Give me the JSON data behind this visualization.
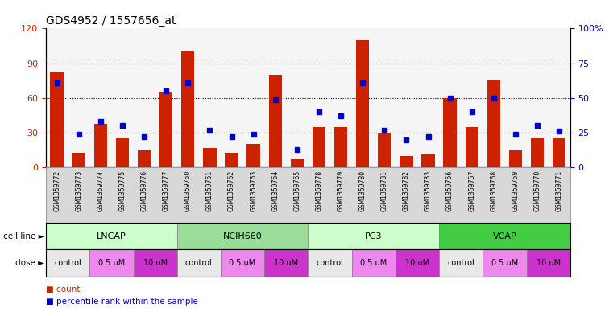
{
  "title": "GDS4952 / 1557656_at",
  "samples": [
    "GSM1359772",
    "GSM1359773",
    "GSM1359774",
    "GSM1359775",
    "GSM1359776",
    "GSM1359777",
    "GSM1359760",
    "GSM1359761",
    "GSM1359762",
    "GSM1359763",
    "GSM1359764",
    "GSM1359765",
    "GSM1359778",
    "GSM1359779",
    "GSM1359780",
    "GSM1359781",
    "GSM1359782",
    "GSM1359783",
    "GSM1359766",
    "GSM1359767",
    "GSM1359768",
    "GSM1359769",
    "GSM1359770",
    "GSM1359771"
  ],
  "counts": [
    83,
    13,
    38,
    25,
    15,
    65,
    100,
    17,
    13,
    20,
    80,
    7,
    35,
    35,
    110,
    30,
    10,
    12,
    60,
    35,
    75,
    15,
    25,
    25
  ],
  "percentiles": [
    61,
    24,
    33,
    30,
    22,
    55,
    61,
    27,
    22,
    24,
    49,
    13,
    40,
    37,
    61,
    27,
    20,
    22,
    50,
    40,
    50,
    24,
    30,
    26
  ],
  "cell_line_groups": [
    {
      "name": "LNCAP",
      "start": 0,
      "end": 6,
      "color": "#ccffcc"
    },
    {
      "name": "NCIH660",
      "start": 6,
      "end": 12,
      "color": "#99dd99"
    },
    {
      "name": "PC3",
      "start": 12,
      "end": 18,
      "color": "#ccffcc"
    },
    {
      "name": "VCAP",
      "start": 18,
      "end": 24,
      "color": "#44cc44"
    }
  ],
  "dose_groups": [
    {
      "label": "control",
      "start": 0,
      "end": 2,
      "color": "#e8e8e8"
    },
    {
      "label": "0.5 uM",
      "start": 2,
      "end": 4,
      "color": "#ee88ee"
    },
    {
      "label": "10 uM",
      "start": 4,
      "end": 6,
      "color": "#dd44dd"
    },
    {
      "label": "control",
      "start": 6,
      "end": 8,
      "color": "#e8e8e8"
    },
    {
      "label": "0.5 uM",
      "start": 8,
      "end": 10,
      "color": "#ee88ee"
    },
    {
      "label": "10 uM",
      "start": 10,
      "end": 12,
      "color": "#dd44dd"
    },
    {
      "label": "control",
      "start": 12,
      "end": 14,
      "color": "#e8e8e8"
    },
    {
      "label": "0.5 uM",
      "start": 14,
      "end": 16,
      "color": "#ee88ee"
    },
    {
      "label": "10 uM",
      "start": 16,
      "end": 18,
      "color": "#dd44dd"
    },
    {
      "label": "control",
      "start": 18,
      "end": 20,
      "color": "#e8e8e8"
    },
    {
      "label": "0.5 uM",
      "start": 20,
      "end": 22,
      "color": "#ee88ee"
    },
    {
      "label": "10 uM",
      "start": 22,
      "end": 24,
      "color": "#dd44dd"
    }
  ],
  "ylim_left": [
    0,
    120
  ],
  "ylim_right": [
    0,
    100
  ],
  "yticks_left": [
    0,
    30,
    60,
    90,
    120
  ],
  "yticks_right": [
    0,
    25,
    50,
    75,
    100
  ],
  "ytick_labels_right": [
    "0",
    "25",
    "50",
    "75",
    "100%"
  ],
  "bar_color": "#cc2200",
  "square_color": "#0000cc",
  "title_fontsize": 10,
  "axis_color_left": "#cc2200",
  "axis_color_right": "#0000cc",
  "bg_color": "#f5f5f5",
  "xticklabel_bg": "#d8d8d8"
}
